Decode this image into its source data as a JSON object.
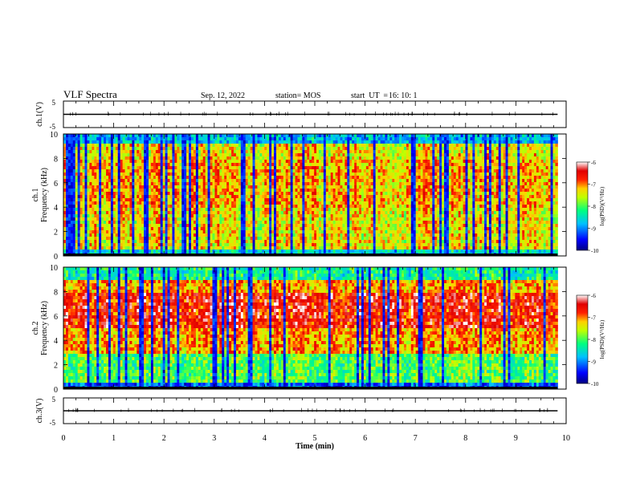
{
  "header": {
    "title": "VLF Spectra",
    "date": "Sep. 12, 2022",
    "station": "station= MOS",
    "ut_label": "start  UT  =",
    "ut_value": "16: 10: 1"
  },
  "chart_data": [
    {
      "type": "line",
      "panel": "ch1-waveform",
      "ylabel": "ch.1(V)",
      "ylim": [
        -5,
        5
      ],
      "y_ticks": [
        "5",
        "-5"
      ],
      "x_range": [
        0,
        10
      ],
      "series": [
        {
          "x": [
            0,
            9.83
          ],
          "values": [
            0,
            0
          ]
        }
      ]
    },
    {
      "type": "heatmap",
      "panel": "ch1-spectrogram",
      "ylabel": "ch.1\nFrequency (kHz)",
      "ylim": [
        0,
        10
      ],
      "y_ticks": [
        "0",
        "2",
        "4",
        "6",
        "8",
        "10"
      ],
      "x_range": [
        0,
        10
      ],
      "data_end_min": 9.83,
      "colorbar": {
        "label": "log(PSD)(V²/Hz)",
        "ticks": [
          "-6",
          "-7",
          "-8",
          "-9",
          "-10"
        ],
        "range": [
          -10,
          -6
        ]
      }
    },
    {
      "type": "heatmap",
      "panel": "ch2-spectrogram",
      "ylabel": "ch.2\nFrequency (kHz)",
      "ylim": [
        0,
        10
      ],
      "y_ticks": [
        "0",
        "2",
        "4",
        "6",
        "8",
        "10"
      ],
      "x_range": [
        0,
        10
      ],
      "data_end_min": 9.83,
      "colorbar": {
        "label": "log(PSD)(V²/Hz)",
        "ticks": [
          "-6",
          "-7",
          "-8",
          "-9",
          "-10"
        ],
        "range": [
          -10,
          -6
        ]
      }
    },
    {
      "type": "line",
      "panel": "ch3-waveform",
      "ylabel": "ch.3(V)",
      "ylim": [
        -5,
        5
      ],
      "y_ticks": [
        "5",
        "-5"
      ],
      "x_range": [
        0,
        10
      ],
      "xlabel": "Time  (min)",
      "x_ticks": [
        "0",
        "1",
        "2",
        "3",
        "4",
        "5",
        "6",
        "7",
        "8",
        "9",
        "10"
      ],
      "series": [
        {
          "x": [
            0,
            9.83
          ],
          "values": [
            0,
            0
          ]
        }
      ]
    }
  ]
}
